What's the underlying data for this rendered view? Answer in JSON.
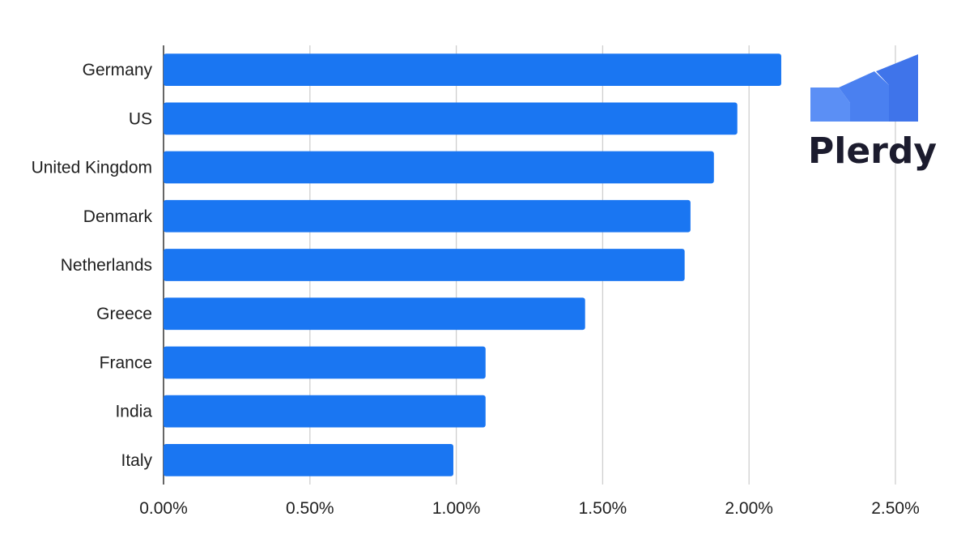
{
  "chart_data": {
    "type": "bar",
    "orientation": "horizontal",
    "categories": [
      "Germany",
      "US",
      "United Kingdom",
      "Denmark",
      "Netherlands",
      "Greece",
      "France",
      "India",
      "Italy"
    ],
    "values": [
      0.0211,
      0.0196,
      0.0188,
      0.018,
      0.0178,
      0.0144,
      0.011,
      0.011,
      0.0099
    ],
    "xlim": [
      0,
      0.025
    ],
    "xticks": [
      "0.00%",
      "0.50%",
      "1.00%",
      "1.50%",
      "2.00%",
      "2.50%"
    ],
    "grid": true,
    "bar_color": "#1a76f2",
    "title": "",
    "xlabel": "",
    "ylabel": ""
  },
  "logo": {
    "text": "Plerdy",
    "colors": [
      "#5b8ff5",
      "#4a80f0",
      "#3f74ea"
    ]
  }
}
